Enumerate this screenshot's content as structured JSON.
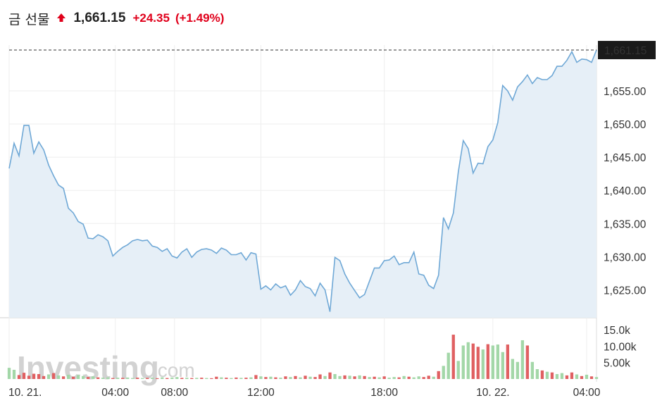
{
  "header": {
    "title": "금 선물",
    "price": "1,661.15",
    "change": "+24.35",
    "change_pct": "(+1.49%)",
    "direction_icon": "arrow-up-icon",
    "up_color": "#e0001b"
  },
  "watermark": {
    "brand": "Investing",
    "suffix": ".com"
  },
  "chart_data": {
    "type": "area",
    "x_ticks": [
      "10. 21.",
      "04:00",
      "08:00",
      "12:00",
      "18:00",
      "10. 22.",
      "04:00"
    ],
    "price_axis": {
      "ticks": [
        "1,625.00",
        "1,630.00",
        "1,635.00",
        "1,640.00",
        "1,645.00",
        "1,650.00",
        "1,655.00"
      ],
      "tick_values": [
        1625,
        1630,
        1635,
        1640,
        1645,
        1650,
        1655
      ],
      "range": [
        1620.8,
        1661.9
      ]
    },
    "last_price": {
      "value": 1661.15,
      "label": "1,661.15"
    },
    "volume_axis": {
      "ticks": [
        "5.00k",
        "10.00k",
        "15.0k"
      ],
      "tick_values": [
        5000,
        10000,
        15000
      ],
      "range": [
        0,
        17800
      ]
    },
    "colors": {
      "line": "#6fa8d6",
      "fill": "#e6eff7",
      "vol_up": "#a3d7a8",
      "vol_down": "#e06062",
      "grid": "#eeeeee",
      "last_label_bg": "#1a1a1a",
      "last_label_fg": "#ffffff"
    },
    "price_series": [
      1643.3,
      1647.1,
      1645.2,
      1649.8,
      1649.8,
      1645.6,
      1647.3,
      1646.1,
      1643.8,
      1642.2,
      1640.8,
      1640.3,
      1637.3,
      1636.6,
      1635.3,
      1634.9,
      1632.8,
      1632.7,
      1633.3,
      1633.0,
      1632.4,
      1630.1,
      1630.8,
      1631.4,
      1631.8,
      1632.4,
      1632.6,
      1632.4,
      1632.5,
      1631.6,
      1631.4,
      1630.8,
      1631.2,
      1630.1,
      1629.8,
      1630.7,
      1631.2,
      1629.9,
      1630.7,
      1631.1,
      1631.2,
      1631.0,
      1630.5,
      1631.3,
      1631.0,
      1630.3,
      1630.3,
      1630.6,
      1629.5,
      1630.6,
      1630.4,
      1625.1,
      1625.6,
      1625.0,
      1625.9,
      1625.3,
      1625.6,
      1624.2,
      1625.0,
      1626.4,
      1625.5,
      1625.2,
      1624.1,
      1626.0,
      1625.0,
      1621.7,
      1629.9,
      1629.4,
      1627.4,
      1626.0,
      1624.9,
      1623.8,
      1624.3,
      1626.3,
      1628.3,
      1628.3,
      1629.4,
      1629.5,
      1630.1,
      1628.8,
      1629.1,
      1629.1,
      1630.7,
      1627.4,
      1627.2,
      1625.7,
      1625.2,
      1627.2,
      1635.9,
      1634.2,
      1636.6,
      1642.8,
      1647.5,
      1646.3,
      1642.6,
      1644.1,
      1644.0,
      1646.6,
      1647.6,
      1650.2,
      1655.8,
      1655.0,
      1653.6,
      1655.6,
      1656.4,
      1657.4,
      1656.1,
      1657.0,
      1656.7,
      1656.7,
      1657.3,
      1658.7,
      1658.7,
      1659.6,
      1660.9,
      1659.3,
      1659.8,
      1659.7,
      1659.3,
      1661.15
    ],
    "volume_series": [
      {
        "v": 3400,
        "d": "up"
      },
      {
        "v": 2800,
        "d": "up"
      },
      {
        "v": 1200,
        "d": "down"
      },
      {
        "v": 1900,
        "d": "down"
      },
      {
        "v": 1000,
        "d": "down"
      },
      {
        "v": 1600,
        "d": "down"
      },
      {
        "v": 1500,
        "d": "down"
      },
      {
        "v": 900,
        "d": "down"
      },
      {
        "v": 1400,
        "d": "up"
      },
      {
        "v": 1800,
        "d": "down"
      },
      {
        "v": 1100,
        "d": "up"
      },
      {
        "v": 800,
        "d": "down"
      },
      {
        "v": 1300,
        "d": "up"
      },
      {
        "v": 700,
        "d": "down"
      },
      {
        "v": 1200,
        "d": "up"
      },
      {
        "v": 900,
        "d": "up"
      },
      {
        "v": 600,
        "d": "down"
      },
      {
        "v": 800,
        "d": "up"
      },
      {
        "v": 500,
        "d": "down"
      },
      {
        "v": 400,
        "d": "up"
      },
      {
        "v": 500,
        "d": "up"
      },
      {
        "v": 300,
        "d": "down"
      },
      {
        "v": 400,
        "d": "up"
      },
      {
        "v": 350,
        "d": "down"
      },
      {
        "v": 450,
        "d": "up"
      },
      {
        "v": 300,
        "d": "up"
      },
      {
        "v": 400,
        "d": "down"
      },
      {
        "v": 300,
        "d": "up"
      },
      {
        "v": 350,
        "d": "down"
      },
      {
        "v": 400,
        "d": "up"
      },
      {
        "v": 250,
        "d": "down"
      },
      {
        "v": 500,
        "d": "up"
      },
      {
        "v": 300,
        "d": "down"
      },
      {
        "v": 450,
        "d": "up"
      },
      {
        "v": 600,
        "d": "up"
      },
      {
        "v": 350,
        "d": "down"
      },
      {
        "v": 400,
        "d": "up"
      },
      {
        "v": 300,
        "d": "down"
      },
      {
        "v": 350,
        "d": "up"
      },
      {
        "v": 400,
        "d": "down"
      },
      {
        "v": 300,
        "d": "up"
      },
      {
        "v": 250,
        "d": "down"
      },
      {
        "v": 700,
        "d": "down"
      },
      {
        "v": 500,
        "d": "up"
      },
      {
        "v": 400,
        "d": "down"
      },
      {
        "v": 300,
        "d": "up"
      },
      {
        "v": 450,
        "d": "down"
      },
      {
        "v": 350,
        "d": "up"
      },
      {
        "v": 400,
        "d": "down"
      },
      {
        "v": 500,
        "d": "up"
      },
      {
        "v": 1200,
        "d": "down"
      },
      {
        "v": 800,
        "d": "up"
      },
      {
        "v": 600,
        "d": "down"
      },
      {
        "v": 700,
        "d": "up"
      },
      {
        "v": 500,
        "d": "down"
      },
      {
        "v": 400,
        "d": "up"
      },
      {
        "v": 800,
        "d": "down"
      },
      {
        "v": 600,
        "d": "up"
      },
      {
        "v": 900,
        "d": "down"
      },
      {
        "v": 500,
        "d": "up"
      },
      {
        "v": 1000,
        "d": "down"
      },
      {
        "v": 700,
        "d": "up"
      },
      {
        "v": 600,
        "d": "down"
      },
      {
        "v": 1400,
        "d": "down"
      },
      {
        "v": 900,
        "d": "up"
      },
      {
        "v": 2000,
        "d": "down"
      },
      {
        "v": 1500,
        "d": "up"
      },
      {
        "v": 900,
        "d": "up"
      },
      {
        "v": 1100,
        "d": "down"
      },
      {
        "v": 1000,
        "d": "up"
      },
      {
        "v": 800,
        "d": "down"
      },
      {
        "v": 1100,
        "d": "up"
      },
      {
        "v": 900,
        "d": "down"
      },
      {
        "v": 600,
        "d": "up"
      },
      {
        "v": 700,
        "d": "down"
      },
      {
        "v": 500,
        "d": "up"
      },
      {
        "v": 800,
        "d": "down"
      },
      {
        "v": 400,
        "d": "up"
      },
      {
        "v": 600,
        "d": "up"
      },
      {
        "v": 500,
        "d": "down"
      },
      {
        "v": 900,
        "d": "up"
      },
      {
        "v": 700,
        "d": "down"
      },
      {
        "v": 500,
        "d": "up"
      },
      {
        "v": 800,
        "d": "up"
      },
      {
        "v": 600,
        "d": "down"
      },
      {
        "v": 1000,
        "d": "down"
      },
      {
        "v": 700,
        "d": "up"
      },
      {
        "v": 2400,
        "d": "down"
      },
      {
        "v": 4000,
        "d": "up"
      },
      {
        "v": 8000,
        "d": "up"
      },
      {
        "v": 13500,
        "d": "down"
      },
      {
        "v": 5500,
        "d": "up"
      },
      {
        "v": 10200,
        "d": "up"
      },
      {
        "v": 11200,
        "d": "up"
      },
      {
        "v": 10800,
        "d": "down"
      },
      {
        "v": 9800,
        "d": "down"
      },
      {
        "v": 9000,
        "d": "up"
      },
      {
        "v": 10600,
        "d": "down"
      },
      {
        "v": 10200,
        "d": "up"
      },
      {
        "v": 10500,
        "d": "up"
      },
      {
        "v": 8200,
        "d": "up"
      },
      {
        "v": 10500,
        "d": "down"
      },
      {
        "v": 6100,
        "d": "up"
      },
      {
        "v": 5200,
        "d": "up"
      },
      {
        "v": 11800,
        "d": "up"
      },
      {
        "v": 10200,
        "d": "down"
      },
      {
        "v": 5200,
        "d": "up"
      },
      {
        "v": 3000,
        "d": "up"
      },
      {
        "v": 2600,
        "d": "down"
      },
      {
        "v": 2200,
        "d": "up"
      },
      {
        "v": 2000,
        "d": "down"
      },
      {
        "v": 1500,
        "d": "up"
      },
      {
        "v": 1800,
        "d": "up"
      },
      {
        "v": 1100,
        "d": "down"
      },
      {
        "v": 2000,
        "d": "down"
      },
      {
        "v": 1400,
        "d": "up"
      },
      {
        "v": 900,
        "d": "down"
      },
      {
        "v": 1300,
        "d": "up"
      },
      {
        "v": 800,
        "d": "down"
      },
      {
        "v": 600,
        "d": "up"
      }
    ]
  }
}
